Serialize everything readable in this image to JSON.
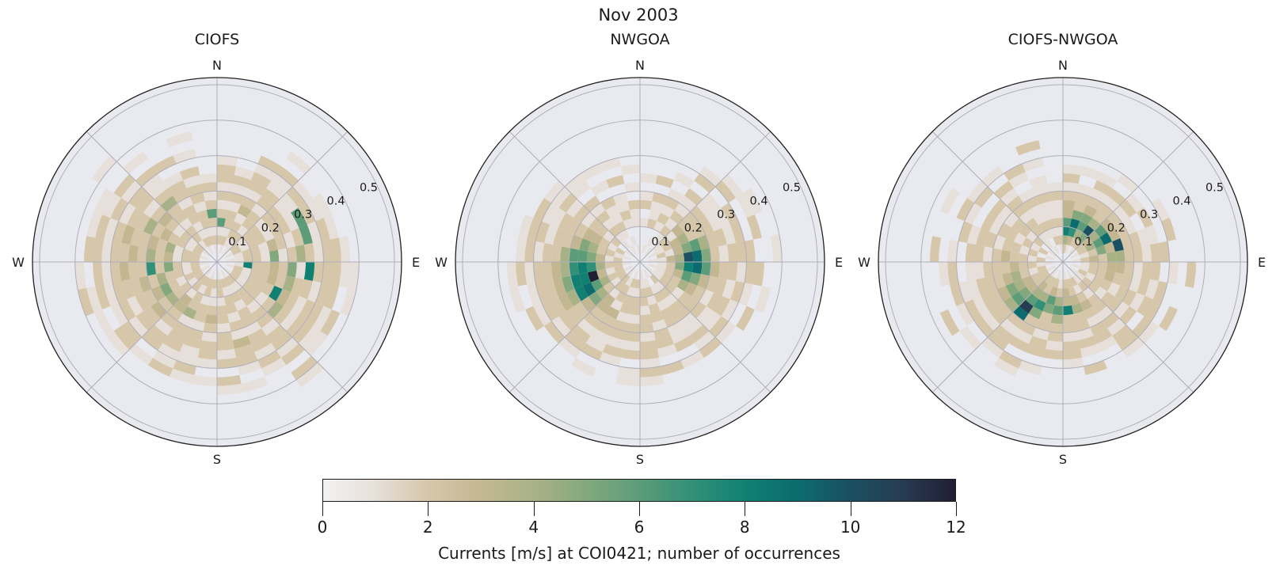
{
  "title": "Nov 2003",
  "colorbar": {
    "min": 0,
    "max": 12,
    "ticks": [
      "0",
      "2",
      "4",
      "6",
      "8",
      "10",
      "12"
    ],
    "label": "Currents [m/s] at COI0421; number of occurrences",
    "orientation": "horizontal"
  },
  "colors": {
    "page_bg": "#ffffff",
    "plot_bg": "#e9e9f0",
    "grid": "#b0afb8",
    "outline": "#222222",
    "text": "#1a1a1a",
    "value_scale": [
      "#f2f1f2",
      "#e7e0da",
      "#d6c7aa",
      "#c3b792",
      "#a9b286",
      "#84a87e",
      "#5c9c79",
      "#339078",
      "#118073",
      "#0c6b6e",
      "#1b5062",
      "#263c51",
      "#211d35"
    ]
  },
  "chart_data": [
    {
      "type": "heatmap",
      "projection": "polar",
      "title": "CIOFS",
      "compass": {
        "n": "N",
        "e": "E",
        "s": "S",
        "w": "W"
      },
      "r_ticks": [
        "0.1",
        "0.2",
        "0.3",
        "0.4",
        "0.5"
      ],
      "r_tick_values": [
        0.1,
        0.2,
        0.3,
        0.4,
        0.5
      ],
      "r_axis_max": 0.52,
      "direction_bin_deg": 11.25,
      "speed_bin": 0.025,
      "rows_encoding": "32 rows clockwise from North; each char = speed bin from center outward; '.'=0 occurrences, 1-9/a/b/c = 1-12 occurrences",
      "rows": [
        "..2162121221......",
        ".1212212121.......",
        "..12213212212.....",
        ".112122122112.1...",
        "..21221221121.....",
        ".1212212216211....",
        "..122132126121....",
        ".11221512421221...",
        "..18223251822211..",
        ".1212232422122.1..",
        "..2122283212212...",
        ".12122124212211...",
        "..212212212212.21.",
        ".1212122122121....",
        "..21221213221.1...",
        ".12212212212.21...",
        "..2112321221.1....",
        ".1221221221121....",
        "..212241222112....",
        ".12213322122.1....",
        "..2122423221221...",
        ".122125322121.1...",
        "..21224232221212..",
        ".1212527223212.1..",
        "..2213242322122...",
        ".12214232232121...",
        "..2122324221211...",
        ".1212123212212..1.",
        "..12212242112.1...",
        ".1211221221.2.....",
        "..212212212.1.1...",
        ".121262121........"
      ]
    },
    {
      "type": "heatmap",
      "projection": "polar",
      "title": "NWGOA",
      "compass": {
        "n": "N",
        "e": "E",
        "s": "S",
        "w": "W"
      },
      "r_ticks": [
        "0.1",
        "0.2",
        "0.3",
        "0.4",
        "0.5"
      ],
      "r_tick_values": [
        0.1,
        0.2,
        0.3,
        0.4,
        0.5
      ],
      "r_axis_max": 0.52,
      "direction_bin_deg": 11.25,
      "speed_bin": 0.025,
      "rows_encoding": "32 rows clockwise from North; each char = speed bin from center outward; '.'=0 occurrences, 1-9/a/b/c = 1-12 occurrences",
      "rows": [
        "....1.21.1........",
        ".1..2112.2........",
        "..1.12121.1.......",
        ".1.1212112.21.....",
        "..121322211.21....",
        ".11234222112.11...",
        "..2135642212.2....",
        ".1134a9521222..1..",
        "..125896322122....",
        ".112365322121.1...",
        "..1224321221.2....",
        ".112212221121.....",
        "..21212211212.....",
        ".1.12122112.1.....",
        "..121221221.2.....",
        ".1122122122121....",
        "..212212212.11....",
        ".12122122121......",
        "..1221322112.1....",
        ".122133221221.....",
        "..21245322212.....",
        ".1224698432212....",
        "..213c8853221.1...",
        ".12247874322121...",
        "..213566422121....",
        ".1122453221221....",
        "..21233222112.....",
        ".1.2122121211.....",
        "..1121212.11......",
        ".1.12112.1.1......",
        "..1.1211.2.1......",
        ".1..112.1.1......."
      ]
    },
    {
      "type": "heatmap",
      "projection": "polar",
      "title": "CIOFS-NWGOA",
      "compass": {
        "n": "N",
        "e": "E",
        "s": "S",
        "w": "W"
      },
      "r_ticks": [
        "0.1",
        "0.2",
        "0.3",
        "0.4",
        "0.5"
      ],
      "r_tick_values": [
        0.1,
        0.2,
        0.3,
        0.4,
        0.5
      ],
      "r_axis_max": 0.52,
      "direction_bin_deg": 11.25,
      "speed_bin": 0.025,
      "rows_encoding": "32 rows clockwise from North; each char = speed bin from center outward; '.'=0 occurrences, 1-9/a/b/c = 1-12 occurrences",
      "rows": [
        ".2486332121.......",
        ".13795221.1.......",
        "..246532121.......",
        ".125a42212.1......",
        "..234632121.......",
        ".12469321.2.1.....",
        "..1253a2211.2.....",
        ".12324422122......",
        "..122332122.1.2...",
        ".11223221212......",
        "..2122122122.2....",
        ".112212212.21.....",
        "..12122121221.....",
        ".1212321221.......",
        "..223422121.2.....",
        ".12338221221......",
        "..124642212.......",
        ".1236522122.1.....",
        "..224752212.21....",
        ".12346b921221.....",
        "..2235642212.1....",
        ".122345322121.2...",
        "..21243222112.....",
        ".1122322211.21....",
        "..212232122.1.2...",
        ".1.212212212......",
        "..21212212.12.1...",
        ".1.2122112.21.....",
        "..112212212.1.....",
        ".1.121121.12......",
        "..21211211.1.2....",
        ".12121121........."
      ]
    }
  ]
}
